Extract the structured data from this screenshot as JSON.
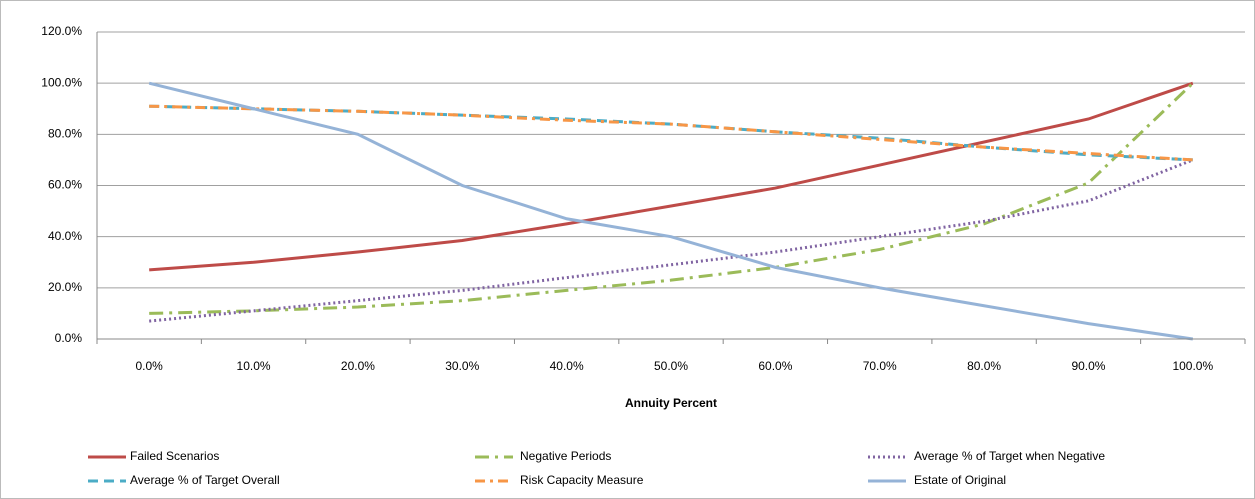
{
  "chart_data": {
    "type": "line",
    "x_label": "Annuity Percent",
    "categories": [
      "0.0%",
      "10.0%",
      "20.0%",
      "30.0%",
      "40.0%",
      "50.0%",
      "60.0%",
      "70.0%",
      "80.0%",
      "90.0%",
      "100.0%"
    ],
    "ylim": [
      0,
      120
    ],
    "yticks": [
      {
        "value": 0,
        "label": "0.0%"
      },
      {
        "value": 20,
        "label": "20.0%"
      },
      {
        "value": 40,
        "label": "40.0%"
      },
      {
        "value": 60,
        "label": "60.0%"
      },
      {
        "value": 80,
        "label": "80.0%"
      },
      {
        "value": 100,
        "label": "100.0%"
      },
      {
        "value": 120,
        "label": "120.0%"
      }
    ],
    "grid": true,
    "legend": "bottom",
    "series": [
      {
        "name": "Failed Scenarios",
        "color": "#be4b48",
        "dash": "solid",
        "values": [
          27,
          30,
          34,
          38.5,
          45,
          52,
          59,
          68,
          77,
          86,
          100
        ]
      },
      {
        "name": "Negative Periods",
        "color": "#9bbb59",
        "dash": "long-dash-dot",
        "values": [
          10,
          11,
          12.5,
          15,
          19,
          23,
          28,
          35,
          45,
          61,
          100
        ]
      },
      {
        "name": "Average % of Target when Negative",
        "color": "#8064a2",
        "dash": "dot",
        "values": [
          7,
          11,
          15,
          19,
          24,
          29,
          34,
          40,
          46,
          54,
          70
        ]
      },
      {
        "name": "Average % of Target Overall",
        "color": "#4bacc6",
        "dash": "dash",
        "values": [
          91,
          90,
          89,
          87.5,
          86,
          84,
          81,
          78.5,
          75,
          72,
          70
        ]
      },
      {
        "name": "Risk Capacity Measure",
        "color": "#f79646",
        "dash": "dash-dot",
        "values": [
          91,
          90,
          89,
          87.5,
          85.5,
          84,
          81,
          78,
          75,
          72.5,
          70
        ]
      },
      {
        "name": "Estate of Original",
        "color": "#95b3d7",
        "dash": "solid",
        "values": [
          100,
          90,
          80,
          60,
          47,
          40,
          28,
          20,
          13,
          6,
          0
        ]
      }
    ]
  }
}
